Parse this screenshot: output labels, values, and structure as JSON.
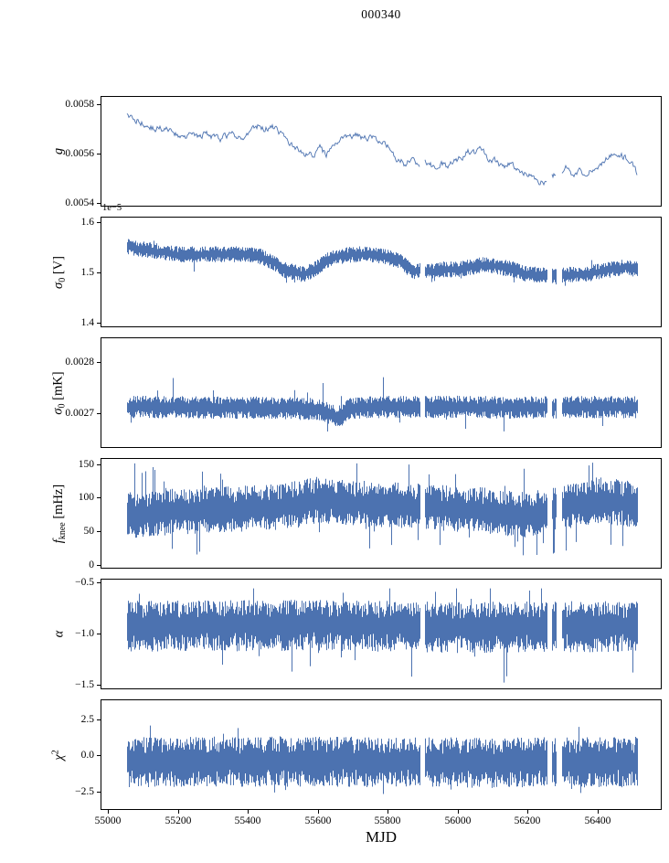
{
  "title": "000340",
  "xlabel": "MJD",
  "colors": {
    "line": "#4c72b0",
    "axis": "#000000",
    "background": "#ffffff"
  },
  "x_axis": {
    "lim": [
      54979,
      56584
    ],
    "ticks": [
      55000,
      55200,
      55400,
      55600,
      55800,
      56000,
      56200,
      56400
    ],
    "tick_labels": [
      "55000",
      "55200",
      "55400",
      "55600",
      "55800",
      "56000",
      "56200",
      "56400"
    ]
  },
  "data_range": {
    "start": 55055,
    "end": 56515
  },
  "gaps": [
    [
      55893,
      55907
    ],
    [
      56256,
      56270
    ],
    [
      56284,
      56298
    ]
  ],
  "chart_data": [
    {
      "name": "g",
      "type": "line",
      "style": "line",
      "ylabel_segments": [
        {
          "t": "g",
          "i": true
        }
      ],
      "ylim": [
        0.005385,
        0.005835
      ],
      "yticks": [
        0.0054,
        0.0056,
        0.0058
      ],
      "ytick_labels": [
        "0.0054",
        "0.0056",
        "0.0058"
      ],
      "offset_text": "",
      "noise": 1.8e-05,
      "trend": [
        [
          55055,
          0.00576
        ],
        [
          55080,
          0.00574
        ],
        [
          55120,
          0.00571
        ],
        [
          55160,
          0.0057
        ],
        [
          55200,
          0.00568
        ],
        [
          55240,
          0.00567
        ],
        [
          55280,
          0.00568
        ],
        [
          55320,
          0.00566
        ],
        [
          55360,
          0.00568
        ],
        [
          55400,
          0.00567
        ],
        [
          55425,
          0.00572
        ],
        [
          55445,
          0.0057
        ],
        [
          55470,
          0.00571
        ],
        [
          55500,
          0.00568
        ],
        [
          55530,
          0.00563
        ],
        [
          55560,
          0.0056
        ],
        [
          55590,
          0.00559
        ],
        [
          55610,
          0.00563
        ],
        [
          55625,
          0.00559
        ],
        [
          55650,
          0.00565
        ],
        [
          55670,
          0.00567
        ],
        [
          55690,
          0.00566
        ],
        [
          55710,
          0.00568
        ],
        [
          55730,
          0.00566
        ],
        [
          55750,
          0.00567
        ],
        [
          55770,
          0.00565
        ],
        [
          55790,
          0.00566
        ],
        [
          55810,
          0.00561
        ],
        [
          55830,
          0.00558
        ],
        [
          55850,
          0.00556
        ],
        [
          55870,
          0.00558
        ],
        [
          55890,
          0.00555
        ],
        [
          55910,
          0.00557
        ],
        [
          55930,
          0.00555
        ],
        [
          55950,
          0.00556
        ],
        [
          55970,
          0.00555
        ],
        [
          55990,
          0.00557
        ],
        [
          56010,
          0.00558
        ],
        [
          56030,
          0.00561
        ],
        [
          56050,
          0.0056
        ],
        [
          56070,
          0.00562
        ],
        [
          56090,
          0.00558
        ],
        [
          56110,
          0.00557
        ],
        [
          56130,
          0.00555
        ],
        [
          56150,
          0.00556
        ],
        [
          56170,
          0.00554
        ],
        [
          56190,
          0.00553
        ],
        [
          56210,
          0.00551
        ],
        [
          56230,
          0.00549
        ],
        [
          56250,
          0.00548
        ],
        [
          56270,
          0.00552
        ],
        [
          56290,
          0.0055
        ],
        [
          56310,
          0.00554
        ],
        [
          56330,
          0.00552
        ],
        [
          56350,
          0.00553
        ],
        [
          56370,
          0.00552
        ],
        [
          56390,
          0.00554
        ],
        [
          56410,
          0.00555
        ],
        [
          56430,
          0.00558
        ],
        [
          56450,
          0.0056
        ],
        [
          56470,
          0.00559
        ],
        [
          56490,
          0.00558
        ],
        [
          56515,
          0.00552
        ]
      ]
    },
    {
      "name": "sigma0_V",
      "type": "line",
      "style": "band",
      "ylabel_segments": [
        {
          "t": "σ",
          "i": true
        },
        {
          "t": "0",
          "sub": true
        },
        {
          "t": " [V]"
        }
      ],
      "ylim": [
        1.39,
        1.61
      ],
      "yticks": [
        1.4,
        1.5,
        1.6
      ],
      "ytick_labels": [
        "1.4",
        "1.5",
        "1.6"
      ],
      "offset_text": "1e−5",
      "noise_up": 0.016,
      "noise_down": 0.016,
      "spike": 0.02,
      "spike_prob": 0.03,
      "clamp": [
        1.42,
        1.595
      ],
      "trend": [
        [
          55055,
          1.55
        ],
        [
          55100,
          1.545
        ],
        [
          55150,
          1.54
        ],
        [
          55200,
          1.535
        ],
        [
          55300,
          1.535
        ],
        [
          55400,
          1.535
        ],
        [
          55440,
          1.53
        ],
        [
          55470,
          1.52
        ],
        [
          55500,
          1.505
        ],
        [
          55530,
          1.5
        ],
        [
          55560,
          1.495
        ],
        [
          55590,
          1.505
        ],
        [
          55620,
          1.52
        ],
        [
          55650,
          1.53
        ],
        [
          55700,
          1.535
        ],
        [
          55750,
          1.535
        ],
        [
          55800,
          1.53
        ],
        [
          55840,
          1.52
        ],
        [
          55870,
          1.5
        ],
        [
          55900,
          1.505
        ],
        [
          55930,
          1.5
        ],
        [
          55960,
          1.505
        ],
        [
          56000,
          1.505
        ],
        [
          56040,
          1.51
        ],
        [
          56080,
          1.515
        ],
        [
          56120,
          1.51
        ],
        [
          56160,
          1.505
        ],
        [
          56200,
          1.495
        ],
        [
          56240,
          1.495
        ],
        [
          56280,
          1.49
        ],
        [
          56320,
          1.495
        ],
        [
          56360,
          1.495
        ],
        [
          56400,
          1.5
        ],
        [
          56440,
          1.505
        ],
        [
          56480,
          1.51
        ],
        [
          56515,
          1.505
        ]
      ]
    },
    {
      "name": "sigma0_mK",
      "type": "line",
      "style": "band",
      "ylabel_segments": [
        {
          "t": "σ",
          "i": true
        },
        {
          "t": "0",
          "sub": true
        },
        {
          "t": " [mK]"
        }
      ],
      "ylim": [
        0.002632,
        0.002848
      ],
      "yticks": [
        0.0027,
        0.0028
      ],
      "ytick_labels": [
        "0.0027",
        "0.0028"
      ],
      "offset_text": "",
      "noise_up": 2.2e-05,
      "noise_down": 2.2e-05,
      "spike": 4e-05,
      "spike_prob": 0.04,
      "clamp": [
        0.002645,
        0.002795
      ],
      "trend": [
        [
          55055,
          0.002712
        ],
        [
          55300,
          0.002711
        ],
        [
          55500,
          0.00271
        ],
        [
          55600,
          0.002707
        ],
        [
          55640,
          0.002698
        ],
        [
          55660,
          0.002692
        ],
        [
          55690,
          0.002708
        ],
        [
          55750,
          0.002712
        ],
        [
          56000,
          0.002712
        ],
        [
          56200,
          0.002711
        ],
        [
          56400,
          0.002712
        ],
        [
          56515,
          0.002712
        ]
      ]
    },
    {
      "name": "f_knee",
      "type": "line",
      "style": "band",
      "ylabel_segments": [
        {
          "t": "f",
          "i": true
        },
        {
          "t": "knee",
          "sub": true
        },
        {
          "t": " [mHz]"
        }
      ],
      "ylim": [
        -6,
        159
      ],
      "yticks": [
        0,
        50,
        100,
        150
      ],
      "ytick_labels": [
        "0",
        "50",
        "100",
        "150"
      ],
      "offset_text": "",
      "noise_up": 36,
      "noise_down": 33,
      "spike": 48,
      "spike_prob": 0.08,
      "clamp": [
        14,
        152
      ],
      "trend": [
        [
          55055,
          72
        ],
        [
          55200,
          78
        ],
        [
          55300,
          80
        ],
        [
          55400,
          82
        ],
        [
          55500,
          85
        ],
        [
          55600,
          95
        ],
        [
          55700,
          90
        ],
        [
          55800,
          88
        ],
        [
          55900,
          85
        ],
        [
          56000,
          82
        ],
        [
          56100,
          78
        ],
        [
          56200,
          72
        ],
        [
          56300,
          85
        ],
        [
          56400,
          95
        ],
        [
          56515,
          88
        ]
      ]
    },
    {
      "name": "alpha",
      "type": "line",
      "style": "band",
      "ylabel_segments": [
        {
          "t": "α",
          "i": true
        }
      ],
      "ylim": [
        -1.545,
        -0.465
      ],
      "yticks": [
        -1.5,
        -1.0,
        -0.5
      ],
      "ytick_labels": [
        "−1.5",
        "−1.0",
        "−0.5"
      ],
      "offset_text": "",
      "noise_up": 0.24,
      "noise_down": 0.26,
      "spike": 0.36,
      "spike_prob": 0.05,
      "clamp": [
        -1.48,
        -0.56
      ],
      "trend": [
        [
          55055,
          -0.92
        ],
        [
          55600,
          -0.91
        ],
        [
          56000,
          -0.93
        ],
        [
          56515,
          -0.92
        ]
      ]
    },
    {
      "name": "chi2",
      "type": "line",
      "style": "band",
      "ylabel_segments": [
        {
          "t": "χ",
          "i": true
        },
        {
          "t": "2",
          "sup": true
        }
      ],
      "ylim": [
        -3.77,
        3.89
      ],
      "yticks": [
        -2.5,
        0.0,
        2.5
      ],
      "ytick_labels": [
        "−2.5",
        "0.0",
        "2.5"
      ],
      "offset_text": "",
      "noise_up": 1.7,
      "noise_down": 1.8,
      "spike": 0.9,
      "spike_prob": 0.05,
      "clamp": [
        -2.9,
        2.5
      ],
      "trend": [
        [
          55055,
          -0.4
        ],
        [
          55600,
          -0.35
        ],
        [
          56000,
          -0.45
        ],
        [
          56515,
          -0.4
        ]
      ]
    }
  ]
}
